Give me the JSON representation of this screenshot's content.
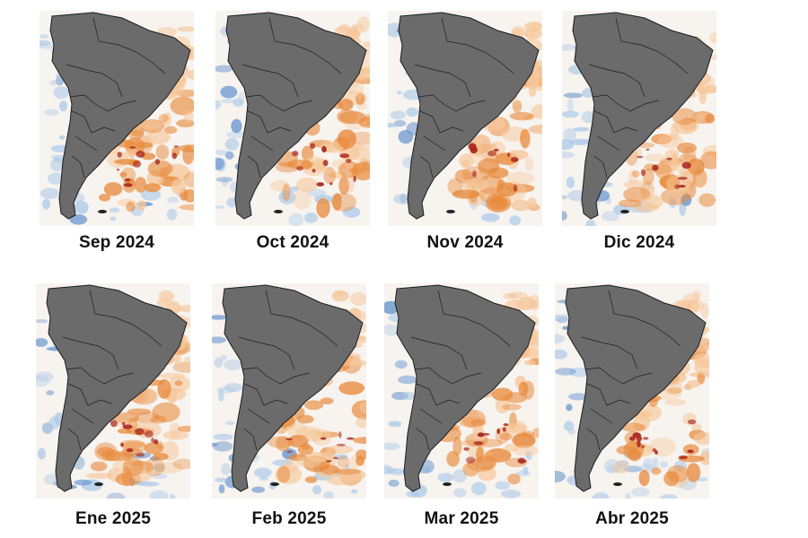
{
  "panels": [
    {
      "label": "Sep 2024",
      "row": "top",
      "warm": 0.85,
      "cool": 0.55,
      "hotspots": 0.6
    },
    {
      "label": "Oct 2024",
      "row": "top",
      "warm": 0.8,
      "cool": 0.5,
      "hotspots": 0.7
    },
    {
      "label": "Nov 2024",
      "row": "top",
      "warm": 0.9,
      "cool": 0.35,
      "hotspots": 0.5
    },
    {
      "label": "Dic 2024",
      "row": "top",
      "warm": 0.75,
      "cool": 0.6,
      "hotspots": 0.55
    },
    {
      "label": "Ene 2025",
      "row": "bottom",
      "warm": 0.9,
      "cool": 0.5,
      "hotspots": 0.65
    },
    {
      "label": "Feb 2025",
      "row": "bottom",
      "warm": 0.7,
      "cool": 0.6,
      "hotspots": 0.5
    },
    {
      "label": "Mar 2025",
      "row": "bottom",
      "warm": 0.8,
      "cool": 0.45,
      "hotspots": 0.6
    },
    {
      "label": "Abr 2025",
      "row": "bottom",
      "warm": 0.75,
      "cool": 0.55,
      "hotspots": 0.7
    }
  ],
  "colors": {
    "land": "#6b6b6b",
    "border": "#1d1d1d",
    "warm": "#e88a3c",
    "warm_light": "#f6c79a",
    "hot": "#a8261c",
    "cool": "#a9c8e8",
    "cool_dark": "#5d8fcc"
  }
}
